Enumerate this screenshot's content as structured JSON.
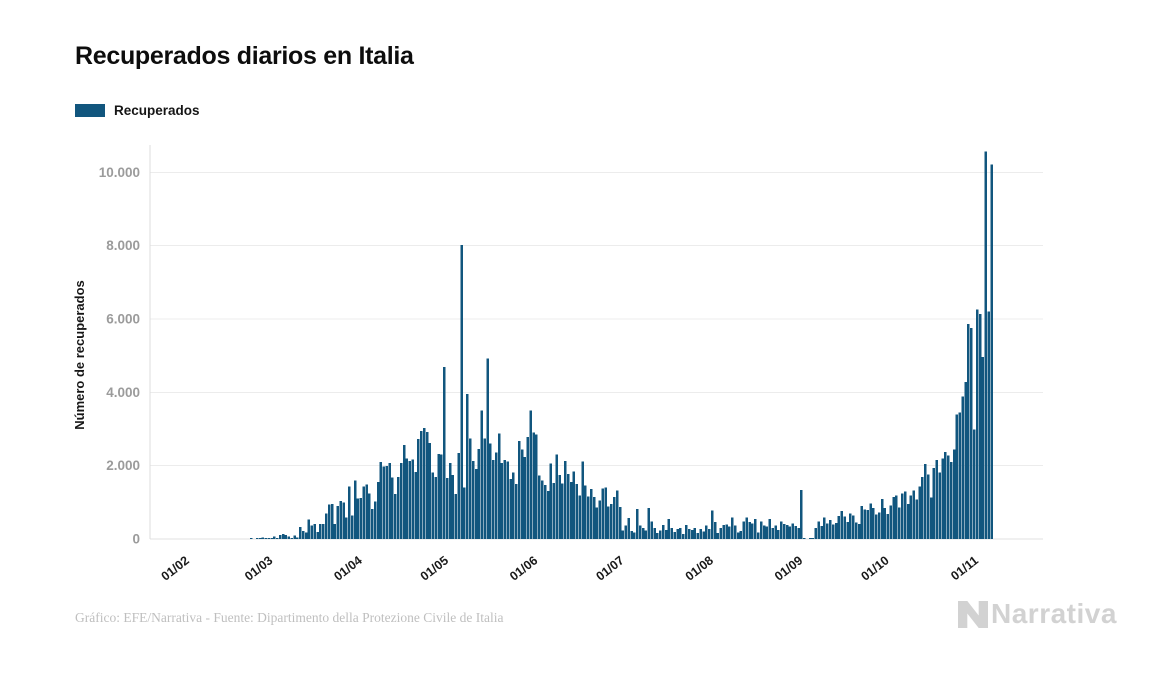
{
  "header": {
    "title": "Recuperados diarios en Italia",
    "legend_label": "Recuperados"
  },
  "footer": {
    "credit": "Gráfico: EFE/Narrativa - Fuente: Dipartimento della Protezione Civile de Italia",
    "logo_text": "Narrativa"
  },
  "colors": {
    "bar": "#11567E",
    "grid": "#ececec",
    "zero_line": "#e2e2e2",
    "axis_line": "#dcdcdc",
    "y_tick_label": "#9b9b9b",
    "x_tick_label": "#1a1a1a",
    "y_axis_label": "#161616"
  },
  "chart_data": {
    "type": "bar",
    "title": "Recuperados diarios en Italia",
    "series_name": "Recuperados",
    "ylabel": "Número de recuperados",
    "xlabel": "",
    "ylim": [
      0,
      11000
    ],
    "grid": true,
    "legend_position": "top-left",
    "y_ticks": [
      0,
      2000,
      4000,
      6000,
      8000,
      10000
    ],
    "y_tick_labels": [
      "0",
      "2.000",
      "4.000",
      "6.000",
      "8.000",
      "10.000"
    ],
    "x_tick_labels": [
      "01/02",
      "01/03",
      "01/04",
      "01/05",
      "01/06",
      "01/07",
      "01/08",
      "01/09",
      "01/10",
      "01/11"
    ],
    "x_start_date": "01/02/2020",
    "x_end_date": "06/11/2020",
    "days_per_month": [
      29,
      31,
      30,
      31,
      30,
      31,
      31,
      30,
      31,
      6
    ],
    "values": [
      0,
      0,
      0,
      0,
      0,
      0,
      0,
      0,
      0,
      0,
      0,
      0,
      0,
      0,
      0,
      0,
      0,
      0,
      0,
      0,
      0,
      0,
      1,
      0,
      1,
      3,
      45,
      2,
      4,
      33,
      66,
      11,
      116,
      138,
      109,
      66,
      33,
      102,
      41,
      321,
      213,
      181,
      527,
      369,
      414,
      192,
      415,
      415,
      689,
      943,
      952,
      408,
      894,
      1036,
      999,
      589,
      1434,
      646,
      1590,
      1109,
      1118,
      1431,
      1480,
      1238,
      819,
      1022,
      1555,
      2099,
      1979,
      1985,
      2079,
      1677,
      1224,
      1695,
      2072,
      2563,
      2200,
      2128,
      2170,
      1822,
      2723,
      2943,
      3033,
      2922,
      2622,
      1808,
      1696,
      2317,
      2311,
      4693,
      1665,
      2079,
      1740,
      1225,
      2352,
      8014,
      1401,
      3955,
      2747,
      2126,
      1903,
      2452,
      3502,
      2747,
      4917,
      2605,
      2159,
      2366,
      2881,
      2075,
      2160,
      2120,
      1639,
      1808,
      1502,
      2677,
      2443,
      2240,
      2789,
      3503,
      2911,
      2848,
      1737,
      1598,
      1479,
      1306,
      2062,
      1526,
      2301,
      1747,
      1516,
      2126,
      1780,
      1558,
      1838,
      1505,
      1186,
      2115,
      1453,
      1159,
      1363,
      1143,
      866,
      1051,
      1374,
      1399,
      890,
      952,
      1147,
      1326,
      873,
      228,
      366,
      574,
      223,
      177,
      825,
      374,
      305,
      229,
      852,
      477,
      305,
      164,
      230,
      388,
      245,
      552,
      295,
      192,
      275,
      306,
      143,
      388,
      275,
      240,
      306,
      170,
      275,
      210,
      362,
      275,
      772,
      463,
      159,
      295,
      385,
      402,
      339,
      583,
      364,
      182,
      225,
      477,
      593,
      465,
      417,
      552,
      182,
      479,
      368,
      337,
      551,
      298,
      365,
      239,
      480,
      415,
      383,
      340,
      418,
      349,
      302,
      1338,
      21,
      0,
      7,
      15,
      305,
      478,
      349,
      581,
      426,
      517,
      389,
      441,
      623,
      759,
      611,
      461,
      695,
      635,
      453,
      408,
      907,
      803,
      790,
      975,
      846,
      672,
      718,
      1090,
      841,
      677,
      909,
      1142,
      1186,
      866,
      1235,
      1290,
      951,
      1184,
      1327,
      1084,
      1433,
      1697,
      2046,
      1760,
      1128,
      1938,
      2156,
      1808,
      2191,
      2369,
      2283,
      2100,
      2448,
      3390,
      3455,
      3883,
      4285,
      5859,
      5760,
      2984,
      6258,
      6140,
      4971,
      10576,
      6203,
      10215
    ]
  }
}
